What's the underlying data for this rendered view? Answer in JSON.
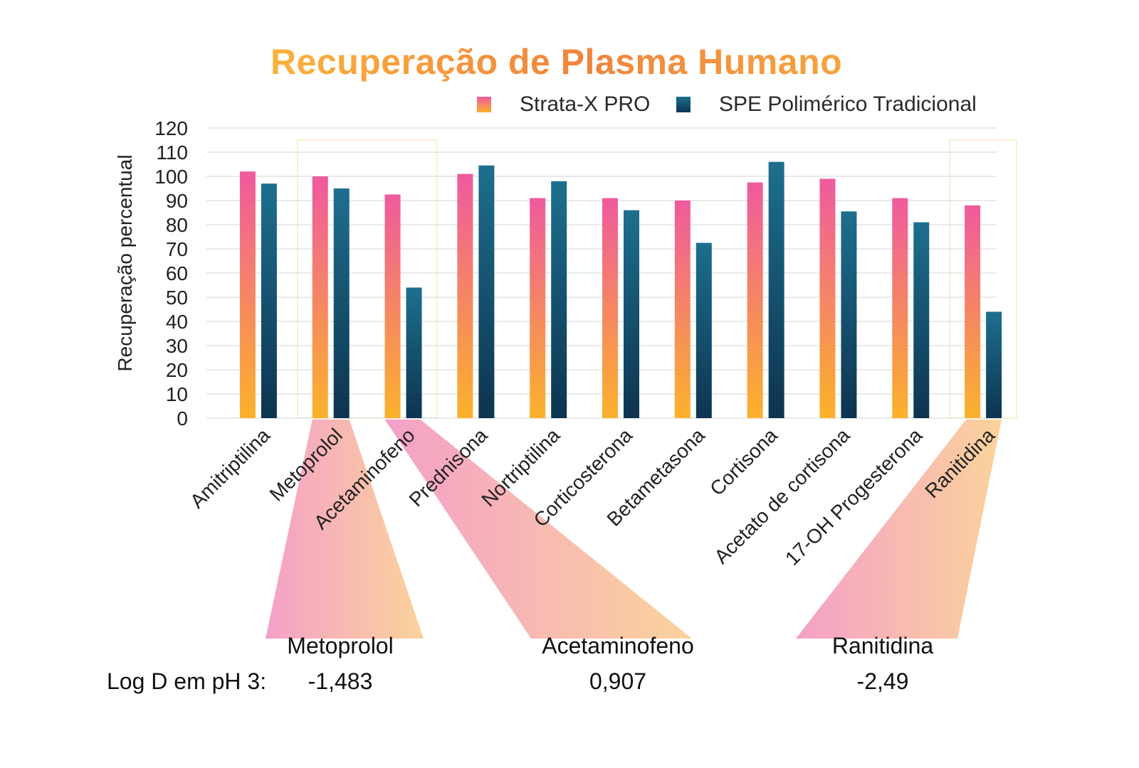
{
  "chart_data": {
    "type": "bar",
    "title": "Recuperação de Plasma Humano",
    "ylabel": "Recuperação percentual",
    "xlabel": "",
    "ylim": [
      0,
      120
    ],
    "yticks": [
      0,
      10,
      20,
      30,
      40,
      50,
      60,
      70,
      80,
      90,
      100,
      110,
      120
    ],
    "grid": true,
    "legend_position": "top-right",
    "categories": [
      "Amitriptilina",
      "Metoprolol",
      "Acetaminofeno",
      "Prednisona",
      "Nortriptilina",
      "Corticosterona",
      "Betametasona",
      "Cortisona",
      "Acetato de cortisona",
      "17-OH Progesterona",
      "Ranitidina"
    ],
    "series": [
      {
        "name": "Strata-X PRO",
        "values": [
          102,
          100,
          92.5,
          101,
          91,
          91,
          90,
          97.5,
          99,
          91,
          88
        ]
      },
      {
        "name": "SPE Polimérico Tradicional",
        "values": [
          97,
          95,
          54,
          104.5,
          98,
          86,
          72.5,
          106,
          85.5,
          81,
          44
        ]
      }
    ],
    "colors": {
      "strata_top": "#ef5a9e",
      "strata_bottom": "#fbb22b",
      "spe_top": "#1d6f8e",
      "spe_bottom": "#0d3450",
      "callout_left": "#f4a0c8",
      "callout_right": "#fbd39b",
      "highlight_box": "#f5ecc0",
      "grid": "#d6d6d6"
    },
    "highlighted": [
      "Metoprolol",
      "Acetaminofeno",
      "Ranitidina"
    ],
    "logd": {
      "label": "Log D em pH 3:",
      "items": [
        {
          "name": "Metoprolol",
          "value": "-1,483"
        },
        {
          "name": "Acetaminofeno",
          "value": "0,907"
        },
        {
          "name": "Ranitidina",
          "value": "-2,49"
        }
      ]
    }
  }
}
